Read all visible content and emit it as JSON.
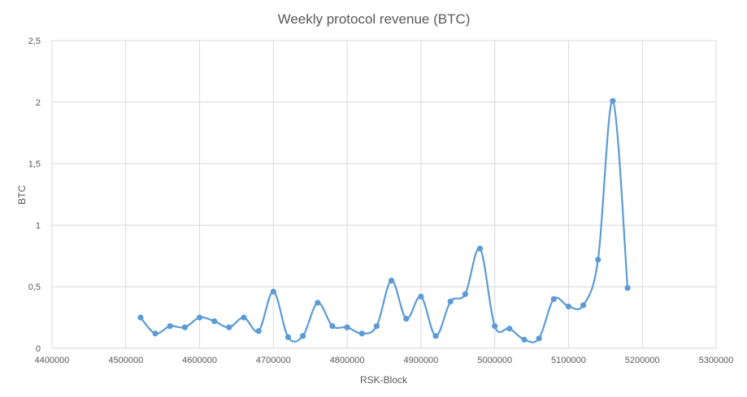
{
  "chart_data": {
    "type": "line",
    "title": "Weekly protocol revenue (BTC)",
    "xlabel": "RSK-Block",
    "ylabel": "BTC",
    "xlim": [
      4400000,
      5300000
    ],
    "ylim": [
      0,
      2.5
    ],
    "x_ticks": [
      4400000,
      4500000,
      4600000,
      4700000,
      4800000,
      4900000,
      5000000,
      5100000,
      5200000,
      5300000
    ],
    "x_tick_labels": [
      "4400000",
      "4500000",
      "4600000",
      "4700000",
      "4800000",
      "4900000",
      "5000000",
      "5100000",
      "5200000",
      "5300000"
    ],
    "y_ticks": [
      0,
      0.5,
      1,
      1.5,
      2,
      2.5
    ],
    "y_tick_labels": [
      "0",
      "0,5",
      "1",
      "1,5",
      "2",
      "2,5"
    ],
    "grid": true,
    "smooth": true,
    "colors": {
      "series": "#5b9bd5",
      "grid": "#d9d9d9",
      "text": "#595959"
    },
    "series": [
      {
        "name": "Weekly protocol revenue",
        "x": [
          4520000,
          4540000,
          4560000,
          4580000,
          4600000,
          4620000,
          4640000,
          4660000,
          4680000,
          4700000,
          4720000,
          4740000,
          4760000,
          4780000,
          4800000,
          4820000,
          4840000,
          4860000,
          4880000,
          4900000,
          4920000,
          4940000,
          4960000,
          4980000,
          5000000,
          5020000,
          5040000,
          5060000,
          5080000,
          5100000,
          5120000,
          5140000,
          5160000,
          5180000
        ],
        "values": [
          0.25,
          0.12,
          0.18,
          0.17,
          0.25,
          0.22,
          0.17,
          0.25,
          0.14,
          0.46,
          0.09,
          0.1,
          0.37,
          0.18,
          0.17,
          0.12,
          0.18,
          0.55,
          0.24,
          0.42,
          0.1,
          0.38,
          0.44,
          0.81,
          0.18,
          0.16,
          0.07,
          0.08,
          0.4,
          0.34,
          0.35,
          0.72,
          2.01,
          0.49
        ]
      }
    ]
  }
}
